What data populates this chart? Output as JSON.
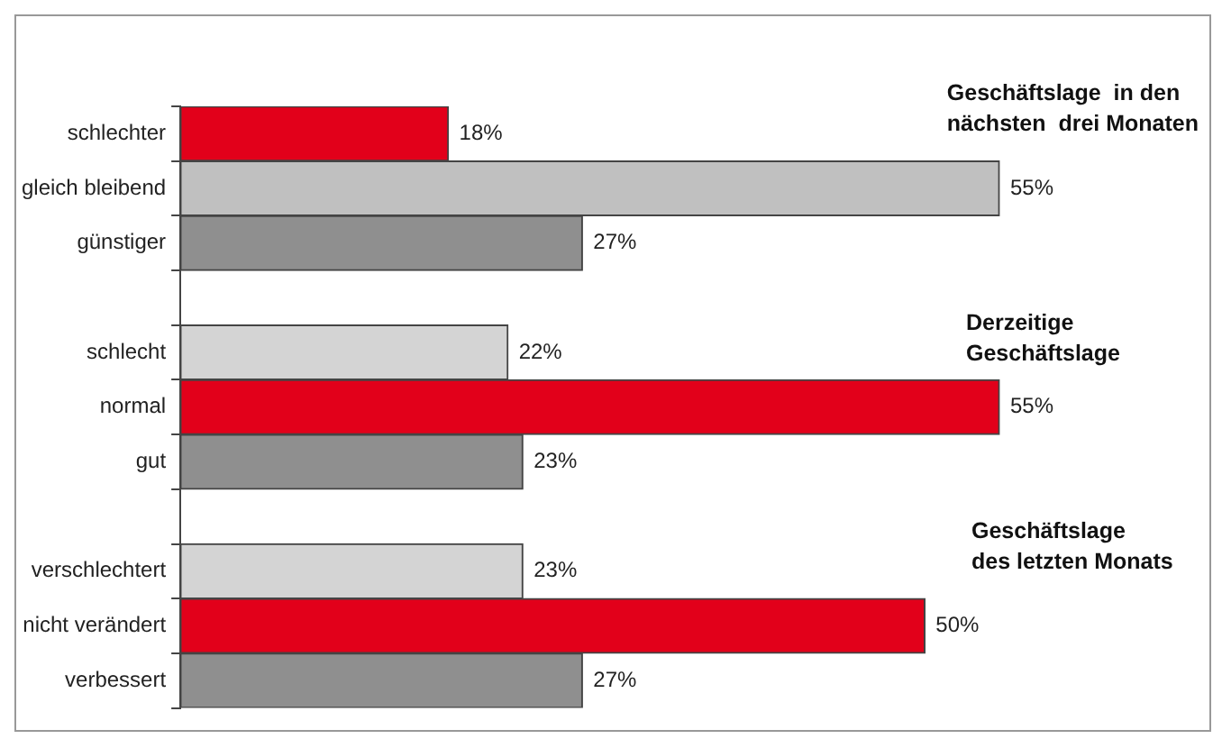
{
  "chart_data": {
    "type": "bar",
    "orientation": "horizontal",
    "categories": [
      "schlechter",
      "gleich bleibend",
      "günstiger",
      null,
      "schlecht",
      "normal",
      "gut",
      null,
      "verschlechtert",
      "nicht verändert",
      "verbessert"
    ],
    "values": [
      18,
      55,
      27,
      null,
      22,
      55,
      23,
      null,
      23,
      50,
      27
    ],
    "colors": [
      "#e2001a",
      "#c0c0c0",
      "#8f8f8f",
      null,
      "#d4d4d4",
      "#e2001a",
      "#8f8f8f",
      null,
      "#d4d4d4",
      "#e2001a",
      "#8f8f8f"
    ],
    "value_labels": [
      "18%",
      "55%",
      "27%",
      null,
      "22%",
      "55%",
      "23%",
      null,
      "23%",
      "50%",
      "27%"
    ],
    "annotations": [
      "Geschäftslage  in den\nnächsten  drei Monaten",
      "Derzeitige\nGeschäftslage",
      "Geschäftslage\ndes letzten Monats"
    ],
    "grid": false,
    "legend": false
  }
}
